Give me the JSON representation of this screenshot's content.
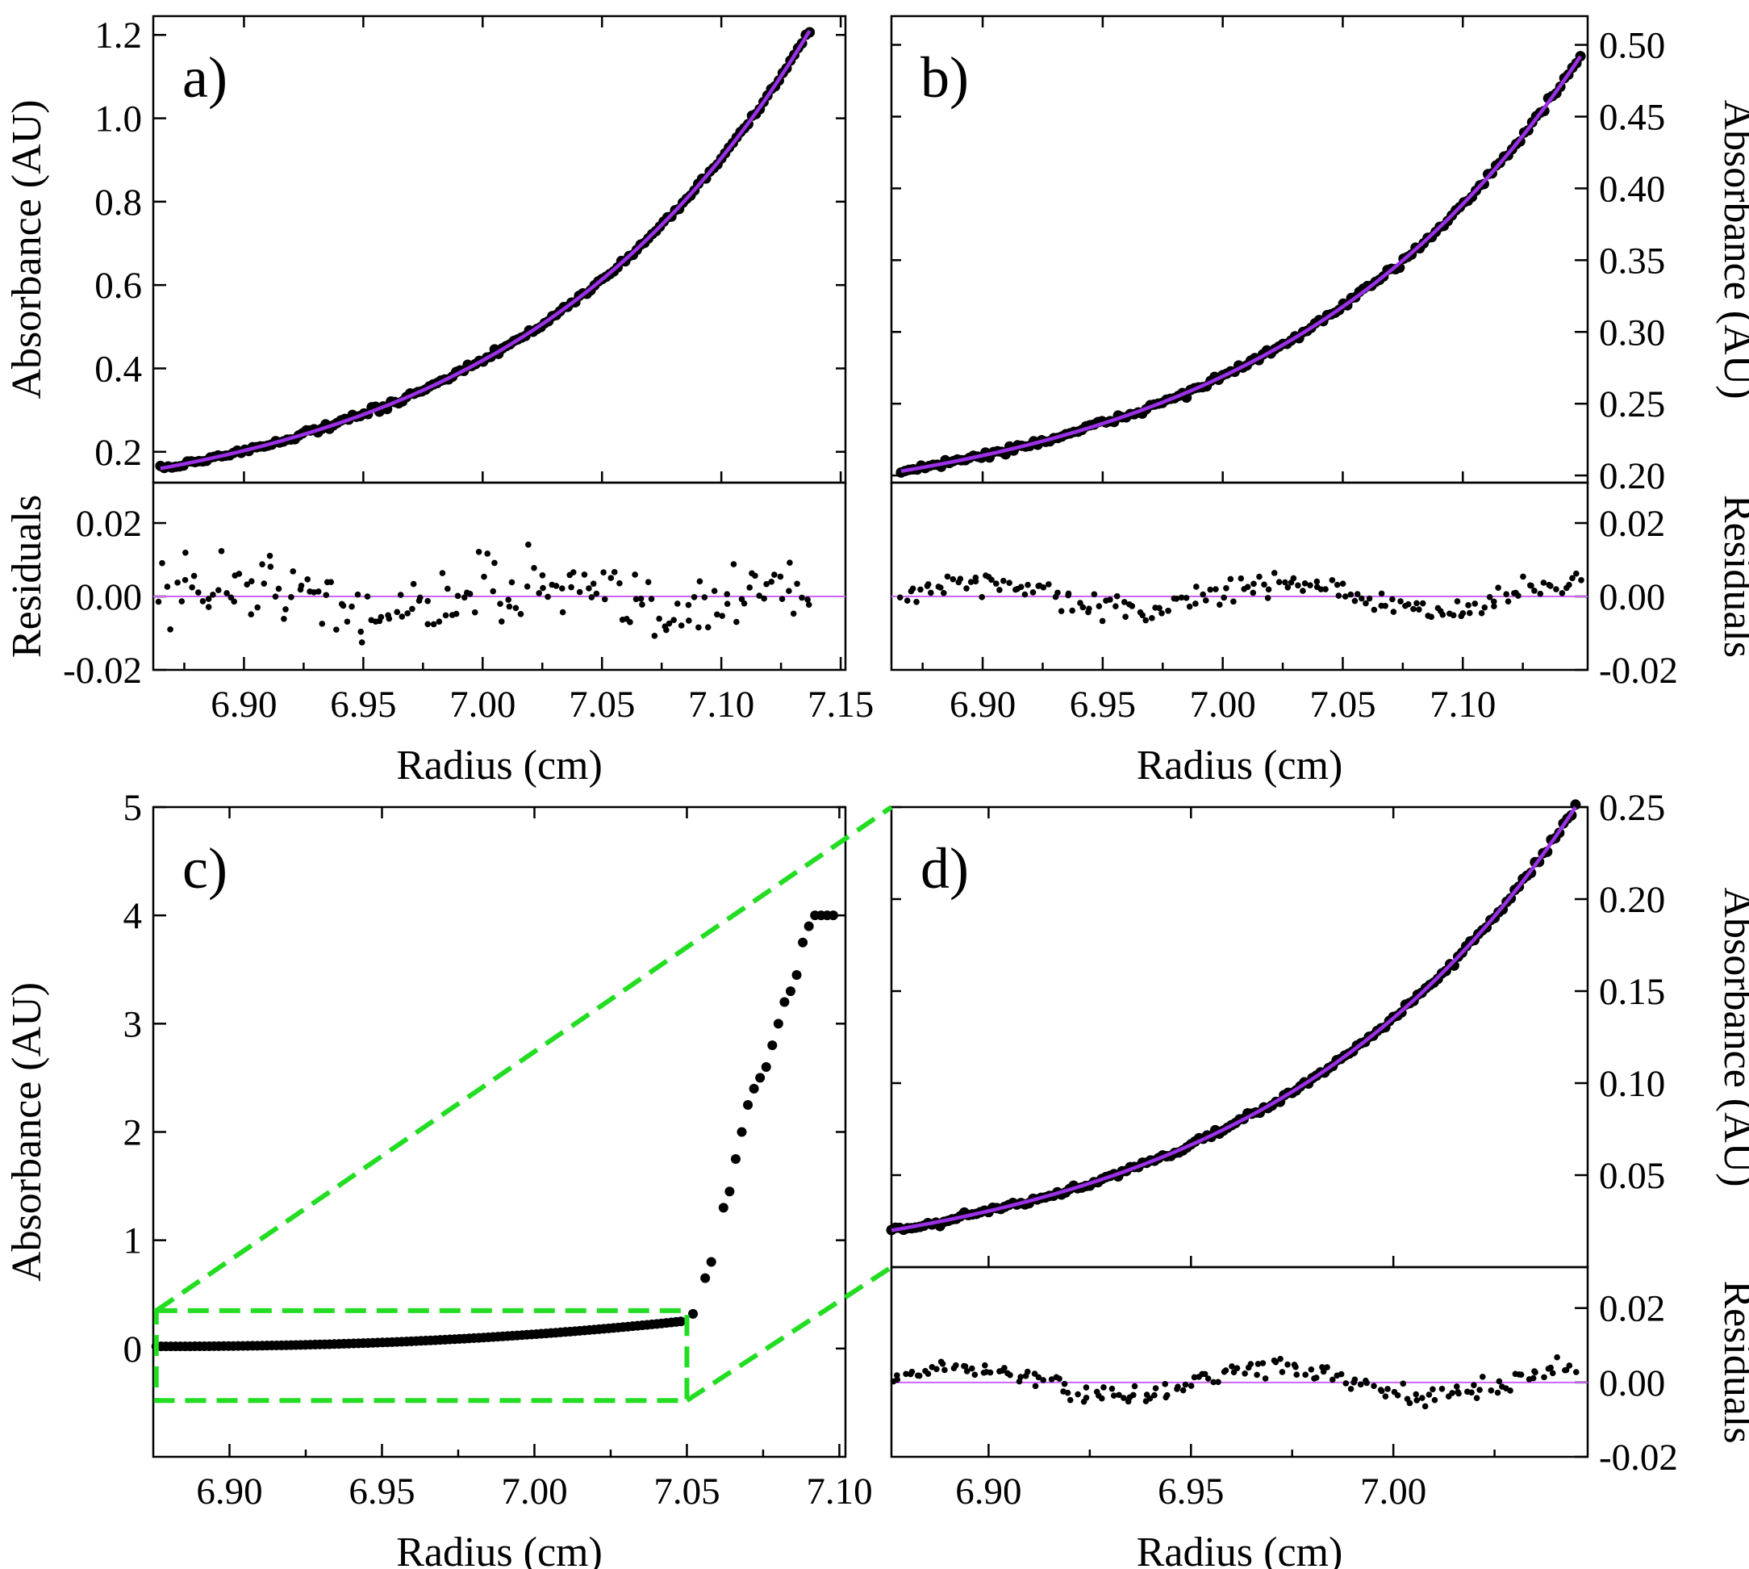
{
  "colors": {
    "fit": "#9b30e6",
    "zero_line": "#cc66ff",
    "points": "#000000",
    "zoom_box": "#22dd22"
  },
  "chart_data": [
    {
      "panel": "a)",
      "type": "scatter",
      "xlabel": "Radius (cm)",
      "ylabel": "Absorbance (AU)",
      "residual_label": "Residuals",
      "xlim": [
        6.862,
        7.152
      ],
      "ylim": [
        0.126,
        1.245
      ],
      "xticks": [
        "6.90",
        "6.95",
        "7.00",
        "7.05",
        "7.10",
        "7.15"
      ],
      "yticks": [
        "0.2",
        "0.4",
        "0.6",
        "0.8",
        "1.0",
        "1.2"
      ],
      "res_ylim": [
        -0.02,
        0.031
      ],
      "res_yticks": [
        "-0.02",
        "0.00",
        "0.02"
      ],
      "fit": {
        "x0": 6.865,
        "x1": 7.137,
        "y0": 0.16,
        "y1": 1.21
      },
      "noise": 0.012
    },
    {
      "panel": "b)",
      "type": "scatter",
      "xlabel": "Radius (cm)",
      "ylabel": "Absorbance (AU)",
      "residual_label": "Residuals",
      "xlim": [
        6.862,
        7.152
      ],
      "ylim": [
        0.195,
        0.52
      ],
      "xticks": [
        "6.90",
        "6.95",
        "7.00",
        "7.05",
        "7.10"
      ],
      "yticks": [
        "0.20",
        "0.25",
        "0.30",
        "0.35",
        "0.40",
        "0.45",
        "0.50"
      ],
      "res_ylim": [
        -0.02,
        0.031
      ],
      "res_yticks": [
        "-0.02",
        "0.00",
        "0.02"
      ],
      "fit": {
        "x0": 6.866,
        "x1": 7.149,
        "y0": 0.203,
        "y1": 0.492
      },
      "noise": 0.004
    },
    {
      "panel": "c)",
      "type": "scatter",
      "xlabel": "Radius (cm)",
      "ylabel": "Absorbance (AU)",
      "xlim": [
        6.875,
        7.102
      ],
      "ylim": [
        -1.0,
        5.0
      ],
      "xticks": [
        "6.90",
        "6.95",
        "7.00",
        "7.05",
        "7.10"
      ],
      "yticks": [
        "0",
        "1",
        "2",
        "3",
        "4",
        "5"
      ],
      "zoom_box": {
        "x0": 6.876,
        "x1": 7.05,
        "y0": -0.48,
        "y1": 0.35
      }
    },
    {
      "panel": "d)",
      "type": "scatter",
      "xlabel": "Radius (cm)",
      "ylabel": "Absorbance (AU)",
      "residual_label": "Residuals",
      "xlim": [
        6.876,
        7.048
      ],
      "ylim": [
        0.0,
        0.25
      ],
      "xticks": [
        "6.90",
        "6.95",
        "7.00"
      ],
      "yticks": [
        "0.05",
        "0.10",
        "0.15",
        "0.20",
        "0.25"
      ],
      "res_ylim": [
        -0.02,
        0.031
      ],
      "res_yticks": [
        "-0.02",
        "0.00",
        "0.02"
      ],
      "fit": {
        "x0": 6.876,
        "x1": 7.045,
        "y0": 0.02,
        "y1": 0.25
      },
      "noise": 0.003
    }
  ]
}
